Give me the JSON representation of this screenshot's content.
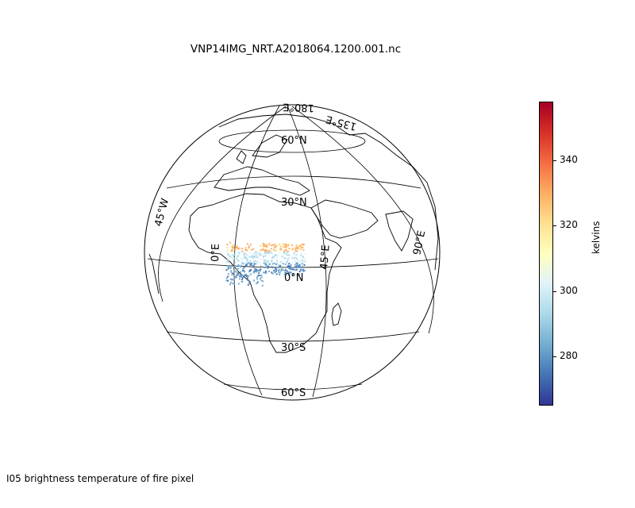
{
  "title": "VNP14IMG_NRT.A2018064.1200.001.nc",
  "caption": "I05 brightness temperature of fire pixel",
  "colorbar": {
    "label": "kelvins",
    "min": 265,
    "max": 358,
    "ticks": [
      {
        "value": 280,
        "label": "280"
      },
      {
        "value": 300,
        "label": "300"
      },
      {
        "value": 320,
        "label": "320"
      },
      {
        "value": 340,
        "label": "340"
      }
    ],
    "colormap": "RdYlBu_r",
    "colors": [
      "#313695",
      "#4575b4",
      "#74add1",
      "#abd9e9",
      "#e0f3f8",
      "#ffffbf",
      "#fee090",
      "#fdae61",
      "#f46d43",
      "#d73027",
      "#a50026"
    ]
  },
  "graticule": {
    "parallels": [
      {
        "label": "60°N"
      },
      {
        "label": "30°N"
      },
      {
        "label": "0°N"
      },
      {
        "label": "30°S"
      },
      {
        "label": "60°S"
      }
    ],
    "meridians": [
      {
        "label": "45°W"
      },
      {
        "label": "0°E"
      },
      {
        "label": "45°E"
      },
      {
        "label": "90°E"
      },
      {
        "label": "135°E"
      },
      {
        "label": "180°E"
      }
    ]
  },
  "map": {
    "projection": "orthographic",
    "region": "Africa",
    "fire_pixel_colors": [
      "#fdae61",
      "#fee090",
      "#abd9e9",
      "#74add1",
      "#e0f3f8",
      "#4575b4"
    ]
  }
}
